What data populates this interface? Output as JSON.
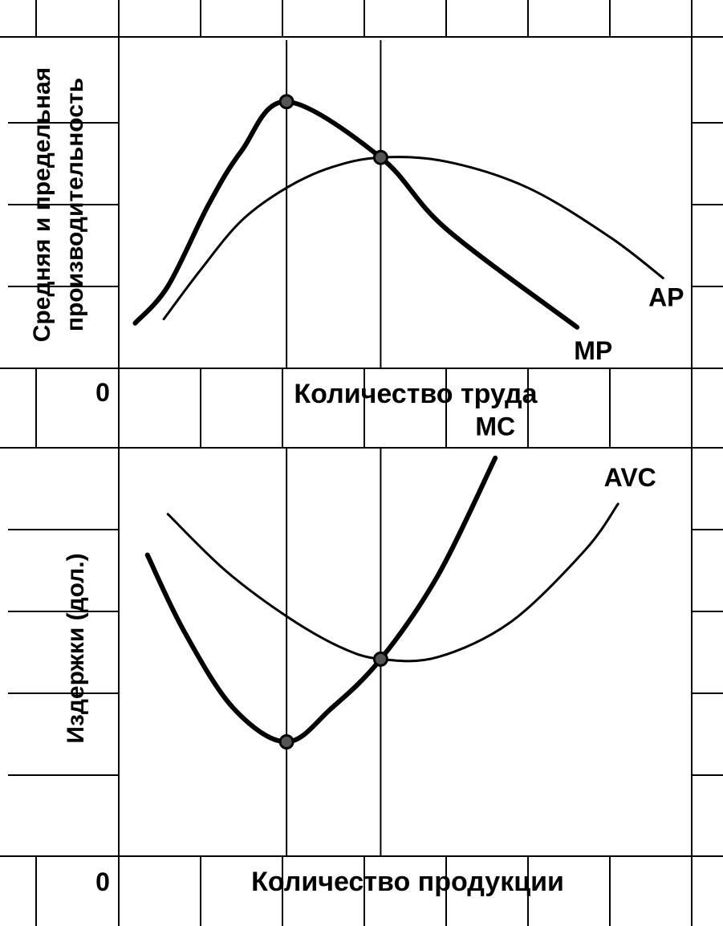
{
  "chart_data": [
    {
      "type": "line",
      "panel": "top",
      "ylabel_lines": [
        "Средняя и предельная",
        "производительность"
      ],
      "xlabel": "Количество труда",
      "origin_label": "0",
      "x_unit": "labor units",
      "xlim": [
        0,
        7
      ],
      "ylim": [
        0,
        4
      ],
      "grid": true,
      "series": [
        {
          "name": "MP",
          "stroke": "thick",
          "points": [
            [
              0.2,
              0.55
            ],
            [
              0.6,
              1.0
            ],
            [
              1.1,
              2.0
            ],
            [
              1.5,
              2.65
            ],
            [
              2.05,
              3.25
            ],
            [
              3.2,
              2.57
            ],
            [
              4.0,
              1.7
            ],
            [
              5.6,
              0.5
            ]
          ]
        },
        {
          "name": "AP",
          "stroke": "thin",
          "points": [
            [
              0.55,
              0.6
            ],
            [
              1.0,
              1.2
            ],
            [
              1.5,
              1.8
            ],
            [
              2.05,
              2.2
            ],
            [
              2.6,
              2.45
            ],
            [
              3.2,
              2.57
            ],
            [
              4.0,
              2.52
            ],
            [
              5.0,
              2.2
            ],
            [
              6.0,
              1.6
            ],
            [
              6.65,
              1.1
            ]
          ]
        }
      ],
      "markers": [
        [
          2.05,
          3.25
        ],
        [
          3.2,
          2.57
        ]
      ],
      "vlines": [
        2.05,
        3.2
      ],
      "colors": {
        "line": "#000000",
        "background": "#ffffff"
      }
    },
    {
      "type": "line",
      "panel": "bottom",
      "ylabel": "Издержки  (дол.)",
      "xlabel": "Количество продукции",
      "origin_label": "0",
      "xlim": [
        0,
        7
      ],
      "ylim": [
        0,
        4
      ],
      "grid": true,
      "series": [
        {
          "name": "MC",
          "stroke": "thick",
          "points": [
            [
              0.35,
              2.95
            ],
            [
              0.8,
              2.2
            ],
            [
              1.4,
              1.45
            ],
            [
              2.05,
              1.12
            ],
            [
              2.6,
              1.45
            ],
            [
              3.2,
              1.93
            ],
            [
              3.9,
              2.75
            ],
            [
              4.6,
              3.9
            ]
          ]
        },
        {
          "name": "AVC",
          "stroke": "thin",
          "points": [
            [
              0.6,
              3.35
            ],
            [
              1.3,
              2.8
            ],
            [
              2.05,
              2.35
            ],
            [
              2.7,
              2.05
            ],
            [
              3.2,
              1.93
            ],
            [
              3.9,
              1.95
            ],
            [
              4.8,
              2.3
            ],
            [
              5.7,
              3.0
            ],
            [
              6.1,
              3.45
            ]
          ]
        }
      ],
      "markers": [
        [
          2.05,
          1.12
        ],
        [
          3.2,
          1.93
        ]
      ],
      "vlines": [
        2.05,
        3.2
      ],
      "colors": {
        "line": "#000000",
        "background": "#ffffff"
      }
    }
  ]
}
